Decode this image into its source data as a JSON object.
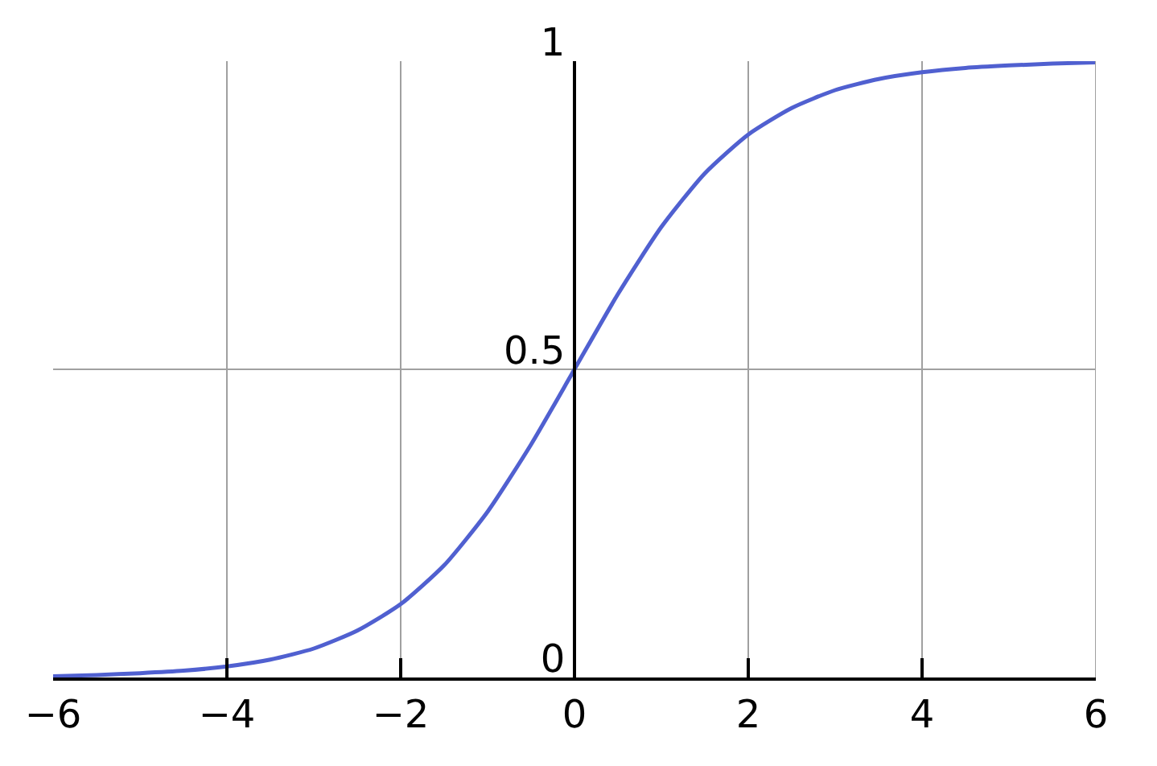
{
  "chart_data": {
    "type": "line",
    "x": [
      -6,
      -5.5,
      -5,
      -4.5,
      -4,
      -3.5,
      -3,
      -2.5,
      -2,
      -1.5,
      -1,
      -0.5,
      0,
      0.5,
      1,
      1.5,
      2,
      2.5,
      3,
      3.5,
      4,
      4.5,
      5,
      5.5,
      6
    ],
    "series": [
      {
        "color": "#5060d0",
        "values": [
          0.002,
          0.004,
          0.007,
          0.011,
          0.018,
          0.029,
          0.047,
          0.076,
          0.119,
          0.182,
          0.269,
          0.378,
          0.5,
          0.622,
          0.731,
          0.818,
          0.881,
          0.924,
          0.953,
          0.971,
          0.982,
          0.989,
          0.993,
          0.996,
          0.998
        ]
      }
    ],
    "xlim": [
      -6,
      6
    ],
    "xticks": [
      {
        "value": -6,
        "label": "−6"
      },
      {
        "value": -4,
        "label": "−4"
      },
      {
        "value": -2,
        "label": "−2"
      },
      0,
      2,
      4,
      6
    ],
    "ylim": [
      0,
      1
    ],
    "yticks": [
      0,
      0.5,
      1
    ],
    "grid": true,
    "legend": false,
    "marker": "none",
    "line_style": "solid"
  }
}
